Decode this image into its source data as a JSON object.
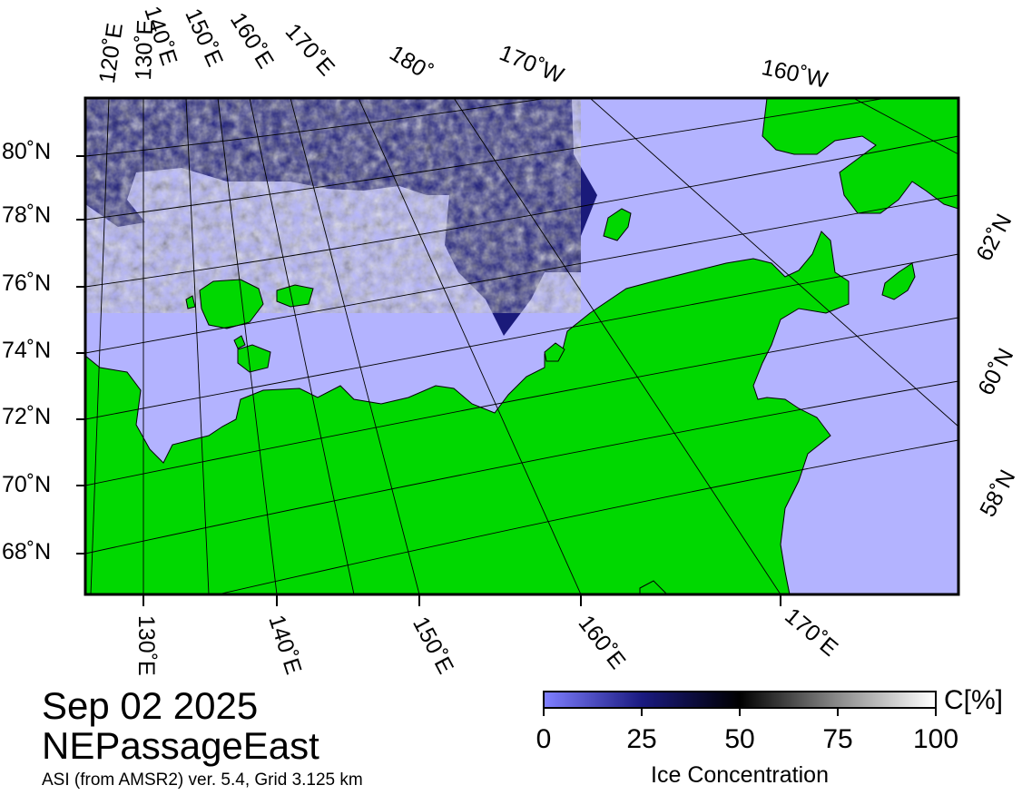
{
  "colors": {
    "ocean": "#b3b3ff",
    "land": "#00d800",
    "graticule": "#000000",
    "frame": "#000000",
    "scale_low": "#7f7fff",
    "scale_mid": "#000000",
    "scale_high": "#ffffff"
  },
  "map": {
    "projection": "polar-stereographic",
    "top_labels": [
      "120˚E",
      "130˚E",
      "140˚E",
      "150˚E",
      "160˚E",
      "170˚E",
      "180˚",
      "170˚W",
      "160˚W"
    ],
    "left_labels": [
      "80˚N",
      "78˚N",
      "76˚N",
      "74˚N",
      "72˚N",
      "70˚N",
      "68˚N"
    ],
    "right_labels": [
      "62˚N",
      "60˚N",
      "58˚N"
    ],
    "bottom_labels": [
      "130˚E",
      "140˚E",
      "150˚E",
      "160˚E",
      "170˚E"
    ]
  },
  "title": {
    "date": "Sep 02 2025",
    "region": "NEPassageEast",
    "info": "ASI (from AMSR2) ver. 5.4,  Grid 3.125 km"
  },
  "legend": {
    "title": "Ice Concentration",
    "unit": "C[%]",
    "ticks": [
      "0",
      "25",
      "50",
      "75",
      "100"
    ],
    "range": [
      0,
      100
    ]
  }
}
